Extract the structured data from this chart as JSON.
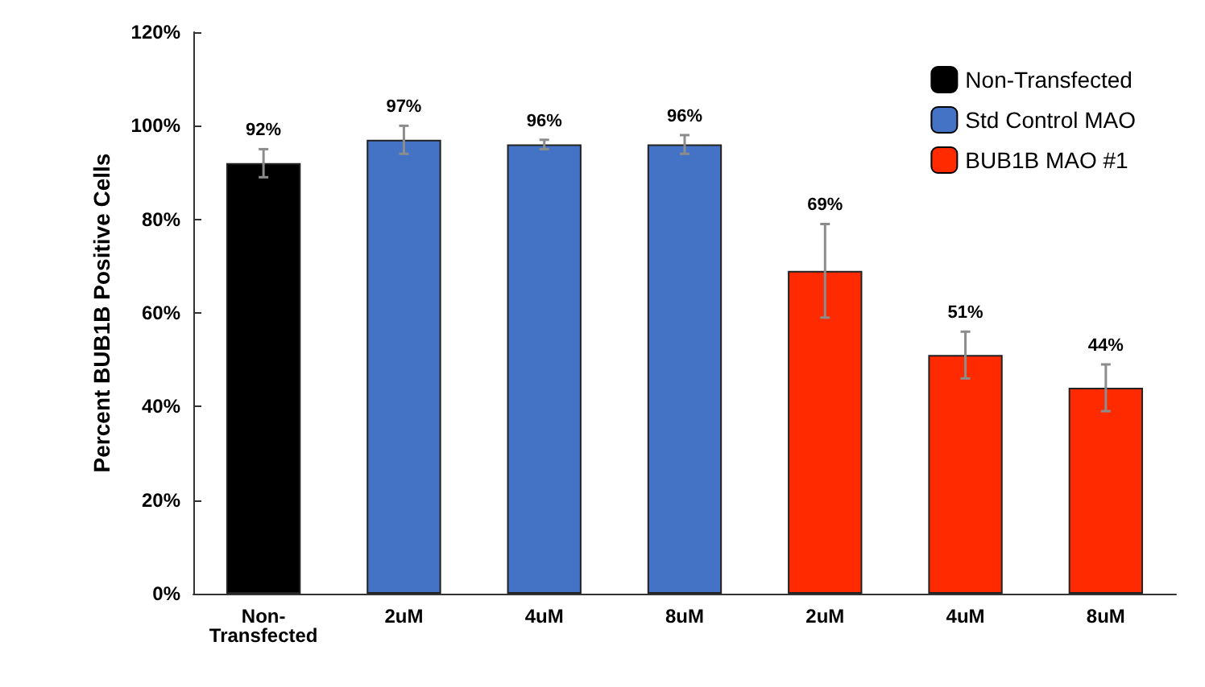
{
  "chart_data": {
    "type": "bar",
    "ylabel": "Percent BUB1B Positive Cells",
    "categories": [
      "Non-\nTransfected",
      "2uM",
      "4uM",
      "8uM",
      "2uM",
      "4uM",
      "8uM"
    ],
    "series": [
      {
        "name": "Non-Transfected",
        "color": "#000000",
        "values": [
          92,
          null,
          null,
          null,
          null,
          null,
          null
        ],
        "errors": [
          3,
          null,
          null,
          null,
          null,
          null,
          null
        ],
        "value_labels": [
          "92%",
          null,
          null,
          null,
          null,
          null,
          null
        ]
      },
      {
        "name": "Std Control MAO",
        "color": "#4472c4",
        "values": [
          null,
          97,
          96,
          96,
          null,
          null,
          null
        ],
        "errors": [
          null,
          3,
          1,
          2,
          null,
          null,
          null
        ],
        "value_labels": [
          null,
          "97%",
          "96%",
          "96%",
          null,
          null,
          null
        ]
      },
      {
        "name": "BUB1B MAO #1",
        "color": "#ff2a00",
        "values": [
          null,
          null,
          null,
          null,
          69,
          51,
          44
        ],
        "errors": [
          null,
          null,
          null,
          null,
          10,
          5,
          5
        ],
        "value_labels": [
          null,
          null,
          null,
          null,
          "69%",
          "51%",
          "44%"
        ]
      }
    ],
    "ylim": [
      0,
      120
    ],
    "yticks": [
      {
        "value": 0,
        "label": "0%"
      },
      {
        "value": 20,
        "label": "20%"
      },
      {
        "value": 40,
        "label": "40%"
      },
      {
        "value": 60,
        "label": "60%"
      },
      {
        "value": 80,
        "label": "80%"
      },
      {
        "value": 100,
        "label": "100%"
      },
      {
        "value": 120,
        "label": "120%"
      }
    ],
    "legend": "top right",
    "grid": false
  }
}
